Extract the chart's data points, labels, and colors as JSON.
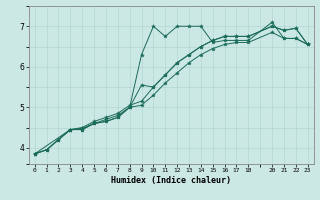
{
  "title": "",
  "xlabel": "Humidex (Indice chaleur)",
  "bg_color": "#cce8e4",
  "line_color": "#1a6b5a",
  "grid_color": "#aad4ce",
  "xlim": [
    -0.5,
    23.5
  ],
  "ylim": [
    3.6,
    7.5
  ],
  "xticks": [
    0,
    1,
    2,
    3,
    4,
    5,
    6,
    7,
    8,
    9,
    10,
    11,
    12,
    13,
    14,
    15,
    16,
    17,
    18,
    20,
    21,
    22,
    23
  ],
  "yticks": [
    4,
    5,
    6,
    7
  ],
  "series": [
    {
      "x": [
        0,
        1,
        2,
        3,
        4,
        5,
        6,
        7,
        8,
        9,
        10,
        11,
        12,
        13,
        14,
        15,
        16,
        17,
        18,
        20,
        21,
        22,
        23
      ],
      "y": [
        3.85,
        3.95,
        4.2,
        4.45,
        4.48,
        4.6,
        4.7,
        4.8,
        5.0,
        6.3,
        7.0,
        6.75,
        7.0,
        7.0,
        7.0,
        6.6,
        6.65,
        6.65,
        6.65,
        7.1,
        6.7,
        6.7,
        6.55
      ]
    },
    {
      "x": [
        0,
        1,
        2,
        3,
        4,
        5,
        6,
        7,
        8,
        9,
        10,
        11,
        12,
        13,
        14,
        15,
        16,
        17,
        18,
        20,
        21,
        22,
        23
      ],
      "y": [
        3.85,
        3.95,
        4.2,
        4.45,
        4.5,
        4.65,
        4.75,
        4.85,
        5.05,
        5.15,
        5.5,
        5.8,
        6.1,
        6.3,
        6.5,
        6.65,
        6.75,
        6.75,
        6.75,
        7.0,
        6.9,
        6.95,
        6.55
      ]
    },
    {
      "x": [
        0,
        3,
        4,
        5,
        6,
        7,
        8,
        9,
        10,
        11,
        12,
        13,
        14,
        15,
        16,
        17,
        18,
        20,
        21,
        22,
        23
      ],
      "y": [
        3.85,
        4.45,
        4.45,
        4.6,
        4.65,
        4.75,
        5.0,
        5.55,
        5.5,
        5.8,
        6.1,
        6.3,
        6.5,
        6.65,
        6.75,
        6.75,
        6.75,
        7.0,
        6.9,
        6.95,
        6.55
      ]
    },
    {
      "x": [
        0,
        1,
        2,
        3,
        4,
        5,
        6,
        7,
        8,
        9,
        10,
        11,
        12,
        13,
        14,
        15,
        16,
        17,
        18,
        20,
        21,
        22,
        23
      ],
      "y": [
        3.85,
        3.95,
        4.2,
        4.45,
        4.45,
        4.6,
        4.65,
        4.75,
        5.0,
        5.05,
        5.3,
        5.6,
        5.85,
        6.1,
        6.3,
        6.45,
        6.55,
        6.6,
        6.6,
        6.85,
        6.7,
        6.7,
        6.55
      ]
    }
  ]
}
